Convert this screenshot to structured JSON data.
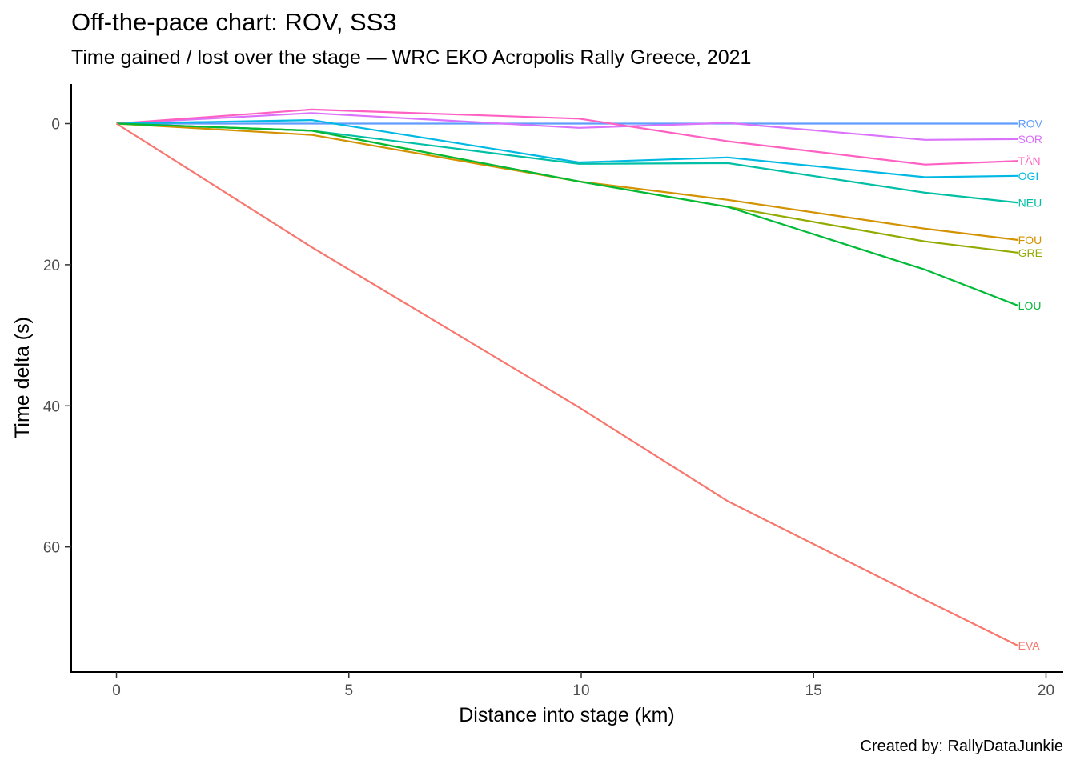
{
  "title": "Off-the-pace chart: ROV, SS3",
  "subtitle": "Time gained / lost over the stage — WRC EKO Acropolis Rally Greece, 2021",
  "caption": "Created by: RallyDataJunkie",
  "chart_data": {
    "type": "line",
    "xlabel": "Distance into stage (km)",
    "ylabel": "Time delta (s)",
    "xlim": [
      -1,
      20.3
    ],
    "ylim": [
      -5.5,
      77
    ],
    "y_reversed": true,
    "grid": false,
    "legend": "direct labels at line ends",
    "x_ticks": [
      0,
      5,
      10,
      15,
      20
    ],
    "y_ticks": [
      0,
      20,
      40,
      60
    ],
    "x": [
      0,
      4.2,
      9.95,
      13.15,
      17.4,
      19.4
    ],
    "series": [
      {
        "name": "ROV",
        "color": "#619cff",
        "values": [
          0,
          0,
          0,
          0,
          0,
          0
        ]
      },
      {
        "name": "SOR",
        "color": "#db72fb",
        "values": [
          0,
          -1.5,
          0.6,
          -0.1,
          2.3,
          2.2
        ]
      },
      {
        "name": "TÄN",
        "color": "#ff61c3",
        "values": [
          0,
          -2.0,
          -0.7,
          2.5,
          5.8,
          5.3
        ]
      },
      {
        "name": "OGI",
        "color": "#00b9e3",
        "values": [
          0,
          -0.5,
          5.5,
          4.8,
          7.6,
          7.4
        ]
      },
      {
        "name": "NEU",
        "color": "#00bfa5",
        "values": [
          0,
          1.0,
          5.7,
          5.6,
          9.8,
          11.2
        ]
      },
      {
        "name": "FOU",
        "color": "#d39200",
        "values": [
          0,
          1.6,
          8.2,
          10.8,
          14.9,
          16.5
        ]
      },
      {
        "name": "GRE",
        "color": "#93aa00",
        "values": [
          0,
          1.0,
          8.2,
          11.8,
          16.7,
          18.3
        ]
      },
      {
        "name": "LOU",
        "color": "#00ba38",
        "values": [
          0,
          1.0,
          8.2,
          11.8,
          20.7,
          25.8
        ]
      },
      {
        "name": "EVA",
        "color": "#f8766d",
        "values": [
          0,
          17.5,
          40.2,
          53.5,
          67.5,
          74.0
        ]
      }
    ]
  }
}
